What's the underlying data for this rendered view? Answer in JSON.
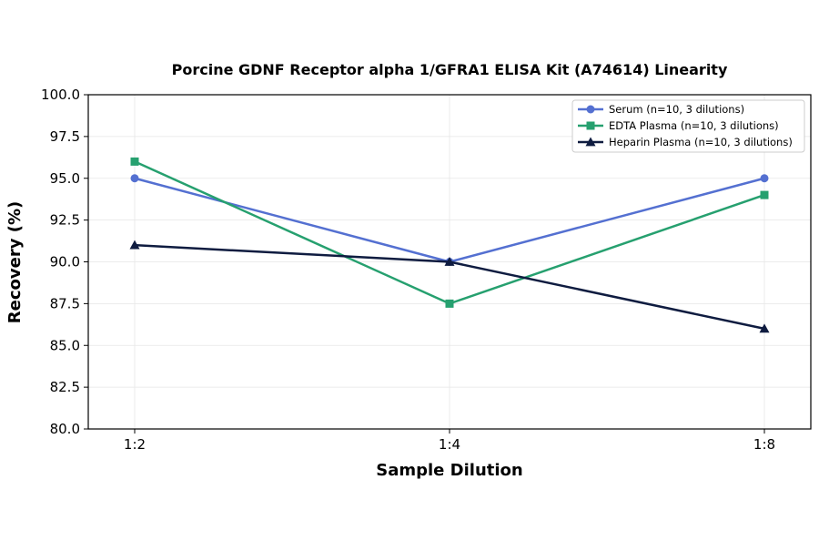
{
  "chart_data": {
    "type": "line",
    "title": "Porcine GDNF Receptor alpha 1/GFRA1 ELISA Kit (A74614) Linearity",
    "xlabel": "Sample Dilution",
    "ylabel": "Recovery (%)",
    "categories": [
      "1:2",
      "1:4",
      "1:8"
    ],
    "ylim": [
      80.0,
      100.0
    ],
    "yticks": [
      "80.0",
      "82.5",
      "85.0",
      "87.5",
      "90.0",
      "92.5",
      "95.0",
      "97.5",
      "100.0"
    ],
    "grid": true,
    "legend_position": "top-right",
    "series": [
      {
        "name": "Serum (n=10, 3 dilutions)",
        "values": [
          95.0,
          90.0,
          95.0
        ],
        "color": "#5470d1",
        "marker": "circle"
      },
      {
        "name": "EDTA Plasma (n=10, 3 dilutions)",
        "values": [
          96.0,
          87.5,
          94.0
        ],
        "color": "#26a06f",
        "marker": "square"
      },
      {
        "name": "Heparin Plasma (n=10, 3 dilutions)",
        "values": [
          91.0,
          90.0,
          86.0
        ],
        "color": "#0f1c40",
        "marker": "triangle"
      }
    ]
  }
}
